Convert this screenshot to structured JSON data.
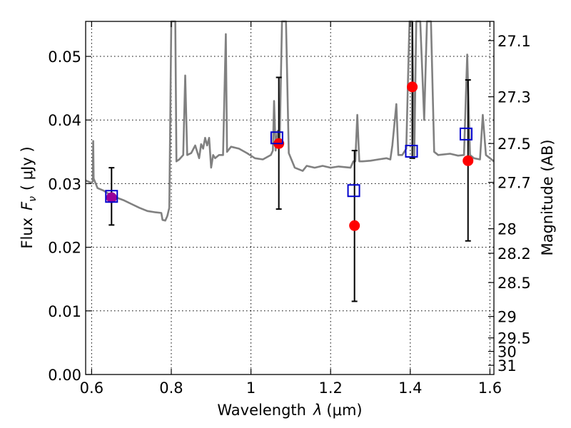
{
  "chart_data": {
    "type": "scatter",
    "xlabel_prefix": "Wavelength",
    "xlabel_symbol": "λ",
    "xlabel_unit": "(μm)",
    "ylabel_prefix": "Flux",
    "ylabel_symbol": "F",
    "ylabel_subscript": "ν",
    "ylabel_unit": "( μJy )",
    "y2label": "Magnitude (AB)",
    "xlim": [
      0.585,
      1.61
    ],
    "ylim": [
      0.0,
      0.0555
    ],
    "x_ticks": [
      0.6,
      0.8,
      1.0,
      1.2,
      1.4,
      1.6
    ],
    "x_tick_labels": [
      "0.6",
      "0.8",
      "1",
      "1.2",
      "1.4",
      "1.6"
    ],
    "y_ticks": [
      0.0,
      0.01,
      0.02,
      0.03,
      0.04,
      0.05
    ],
    "y_tick_labels": [
      "0.00",
      "0.01",
      "0.02",
      "0.03",
      "0.04",
      "0.05"
    ],
    "mag_ticks": [
      27.1,
      27.3,
      27.5,
      27.7,
      28,
      28.2,
      28.5,
      29,
      29.5,
      30,
      31
    ],
    "mag_tick_labels": [
      "27.1",
      "27.3",
      "27.5",
      "27.7",
      "28",
      "28.2",
      "28.5",
      "29",
      "29.5",
      "30",
      "31"
    ],
    "grid": true,
    "colors": {
      "model": "#808080",
      "observed": "#ff0000",
      "model_phot": "#0000cc",
      "errorbar": "#000000",
      "overlap": "#990099"
    },
    "series": [
      {
        "type": "line",
        "points": [
          [
            0.585,
            0.0305
          ],
          [
            0.6,
            0.0301
          ],
          [
            0.603,
            0.0304
          ],
          [
            0.604,
            0.0367
          ],
          [
            0.605,
            0.0308
          ],
          [
            0.615,
            0.0293
          ],
          [
            0.63,
            0.0289
          ],
          [
            0.65,
            0.0281
          ],
          [
            0.68,
            0.0274
          ],
          [
            0.7,
            0.0268
          ],
          [
            0.72,
            0.0262
          ],
          [
            0.74,
            0.0257
          ],
          [
            0.76,
            0.0255
          ],
          [
            0.775,
            0.0254
          ],
          [
            0.778,
            0.0243
          ],
          [
            0.785,
            0.0242
          ],
          [
            0.79,
            0.0249
          ],
          [
            0.795,
            0.0262
          ],
          [
            0.8,
            0.0555
          ],
          [
            0.81,
            0.0555
          ],
          [
            0.813,
            0.0335
          ],
          [
            0.82,
            0.0338
          ],
          [
            0.83,
            0.0345
          ],
          [
            0.835,
            0.047
          ],
          [
            0.84,
            0.0345
          ],
          [
            0.85,
            0.0348
          ],
          [
            0.86,
            0.036
          ],
          [
            0.87,
            0.034
          ],
          [
            0.875,
            0.0362
          ],
          [
            0.88,
            0.0355
          ],
          [
            0.885,
            0.0372
          ],
          [
            0.89,
            0.036
          ],
          [
            0.895,
            0.0372
          ],
          [
            0.9,
            0.0325
          ],
          [
            0.905,
            0.0345
          ],
          [
            0.91,
            0.034
          ],
          [
            0.92,
            0.0345
          ],
          [
            0.93,
            0.0345
          ],
          [
            0.937,
            0.0535
          ],
          [
            0.94,
            0.035
          ],
          [
            0.95,
            0.0358
          ],
          [
            0.97,
            0.0355
          ],
          [
            0.99,
            0.0348
          ],
          [
            1.01,
            0.034
          ],
          [
            1.03,
            0.0338
          ],
          [
            1.05,
            0.0345
          ],
          [
            1.055,
            0.0352
          ],
          [
            1.058,
            0.043
          ],
          [
            1.062,
            0.0352
          ],
          [
            1.067,
            0.0383
          ],
          [
            1.072,
            0.0365
          ],
          [
            1.078,
            0.0555
          ],
          [
            1.088,
            0.0555
          ],
          [
            1.095,
            0.0348
          ],
          [
            1.11,
            0.0325
          ],
          [
            1.13,
            0.032
          ],
          [
            1.14,
            0.0328
          ],
          [
            1.16,
            0.0325
          ],
          [
            1.18,
            0.0328
          ],
          [
            1.2,
            0.0325
          ],
          [
            1.22,
            0.0327
          ],
          [
            1.25,
            0.0325
          ],
          [
            1.257,
            0.0335
          ],
          [
            1.262,
            0.0335
          ],
          [
            1.267,
            0.0408
          ],
          [
            1.272,
            0.0335
          ],
          [
            1.28,
            0.0335
          ],
          [
            1.3,
            0.0336
          ],
          [
            1.32,
            0.0338
          ],
          [
            1.34,
            0.034
          ],
          [
            1.35,
            0.0338
          ],
          [
            1.355,
            0.036
          ],
          [
            1.365,
            0.0425
          ],
          [
            1.37,
            0.0345
          ],
          [
            1.38,
            0.0345
          ],
          [
            1.39,
            0.0355
          ],
          [
            1.398,
            0.0555
          ],
          [
            1.405,
            0.0555
          ],
          [
            1.41,
            0.034
          ],
          [
            1.415,
            0.0555
          ],
          [
            1.425,
            0.0555
          ],
          [
            1.435,
            0.04
          ],
          [
            1.442,
            0.0555
          ],
          [
            1.452,
            0.0555
          ],
          [
            1.46,
            0.035
          ],
          [
            1.47,
            0.0345
          ],
          [
            1.5,
            0.0347
          ],
          [
            1.52,
            0.0344
          ],
          [
            1.535,
            0.0345
          ],
          [
            1.543,
            0.0503
          ],
          [
            1.55,
            0.0345
          ],
          [
            1.56,
            0.034
          ],
          [
            1.575,
            0.0338
          ],
          [
            1.582,
            0.0408
          ],
          [
            1.59,
            0.0345
          ],
          [
            1.61,
            0.0335
          ]
        ]
      },
      {
        "type": "scatter",
        "marker": "circle",
        "x": [
          0.65,
          1.07,
          1.26,
          1.405,
          1.545
        ],
        "y": [
          0.0278,
          0.0363,
          0.0234,
          0.0452,
          0.0336
        ],
        "yerr_low": [
          0.0235,
          0.026,
          0.0115,
          0.034,
          0.021
        ],
        "yerr_high": [
          0.0325,
          0.0467,
          0.0352,
          0.0555,
          0.0463
        ]
      },
      {
        "type": "scatter",
        "marker": "square",
        "x": [
          0.65,
          1.065,
          1.258,
          1.403,
          1.54
        ],
        "y": [
          0.028,
          0.0372,
          0.0289,
          0.0351,
          0.0378
        ]
      }
    ]
  }
}
